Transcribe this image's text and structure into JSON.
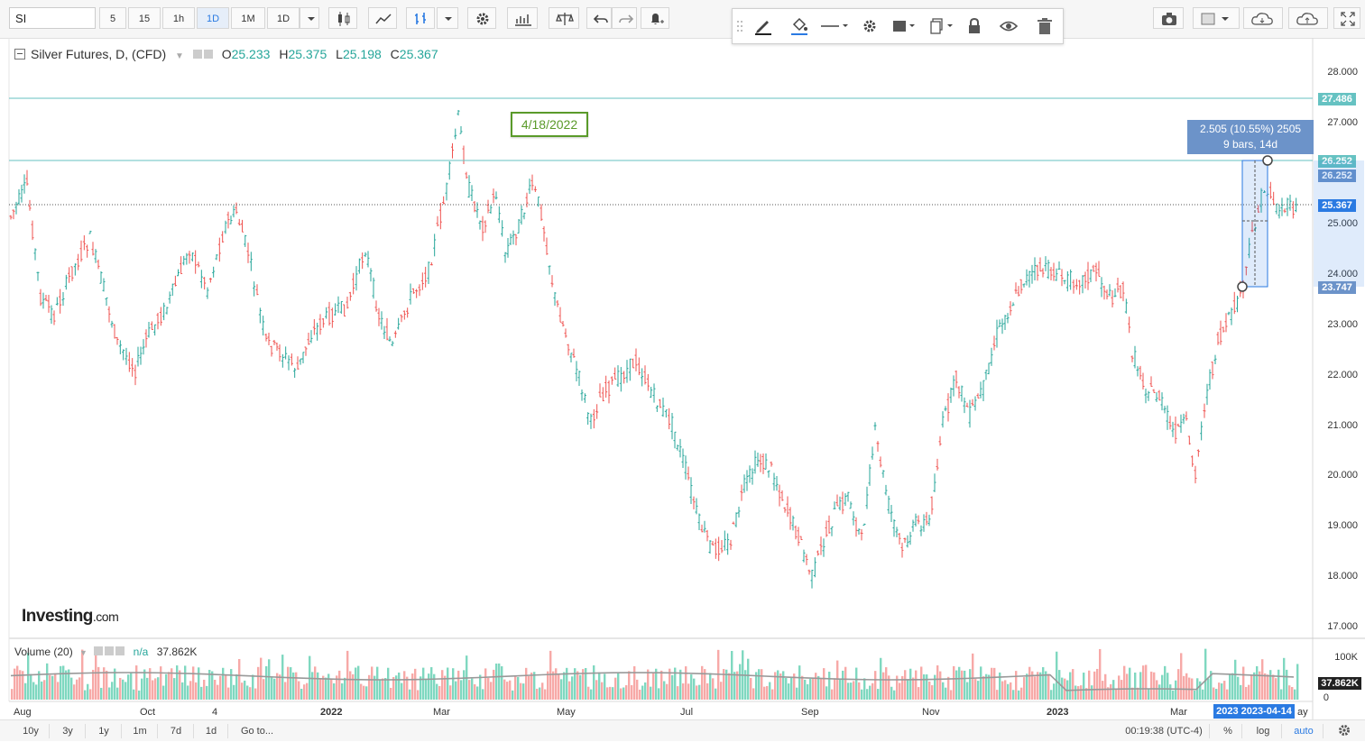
{
  "toolbar": {
    "symbol": "SI",
    "intervals": [
      "5",
      "15",
      "1h",
      "1D",
      "1M",
      "1D"
    ],
    "active_interval": "1D"
  },
  "legend": {
    "title": "Silver Futures, D, (CFD)",
    "o_label": "O",
    "o": "25.233",
    "h_label": "H",
    "h": "25.375",
    "l_label": "L",
    "l": "25.198",
    "c_label": "C",
    "c": "25.367"
  },
  "annotation": {
    "date_label": "4/18/2022"
  },
  "measure": {
    "line1": "2.505 (10.55%) 2505",
    "line2": "9 bars, 14d"
  },
  "price_axis": [
    "28.000",
    "27.000",
    "25.000",
    "24.000",
    "23.000",
    "22.000",
    "21.000",
    "20.000",
    "19.000",
    "18.000",
    "17.000"
  ],
  "price_tags": {
    "high_line": "27.486",
    "measure_top": "26.252",
    "measure_top2": "26.252",
    "last": "25.367",
    "measure_bottom": "23.747"
  },
  "colors": {
    "up": "#26a69a",
    "down": "#ef5350",
    "accent": "#2a7ae2",
    "hline": "#66c2c2"
  },
  "volume": {
    "title": "Volume (20)",
    "na": "n/a",
    "value": "37.862K",
    "axis_top": "100K",
    "axis_zero": "0",
    "tag": "37.862K"
  },
  "x_axis": [
    {
      "label": "Aug",
      "x": 15
    },
    {
      "label": "Oct",
      "x": 155
    },
    {
      "label": "4",
      "x": 235
    },
    {
      "label": "2022",
      "x": 355
    },
    {
      "label": "Mar",
      "x": 480
    },
    {
      "label": "May",
      "x": 617
    },
    {
      "label": "Jul",
      "x": 754
    },
    {
      "label": "Sep",
      "x": 888
    },
    {
      "label": "Nov",
      "x": 1022
    },
    {
      "label": "2023",
      "x": 1160
    },
    {
      "label": "Mar",
      "x": 1297
    }
  ],
  "x_highlight": "2023 2023-04-14",
  "x_tail": "ay",
  "ranges": [
    "10y",
    "3y",
    "1y",
    "1m",
    "7d",
    "1d",
    "Go to..."
  ],
  "status": {
    "time": "00:19:38 (UTC-4)",
    "pct": "%",
    "log": "log",
    "auto": "auto"
  },
  "logo": {
    "main": "Investing",
    "suffix": ".com"
  }
}
